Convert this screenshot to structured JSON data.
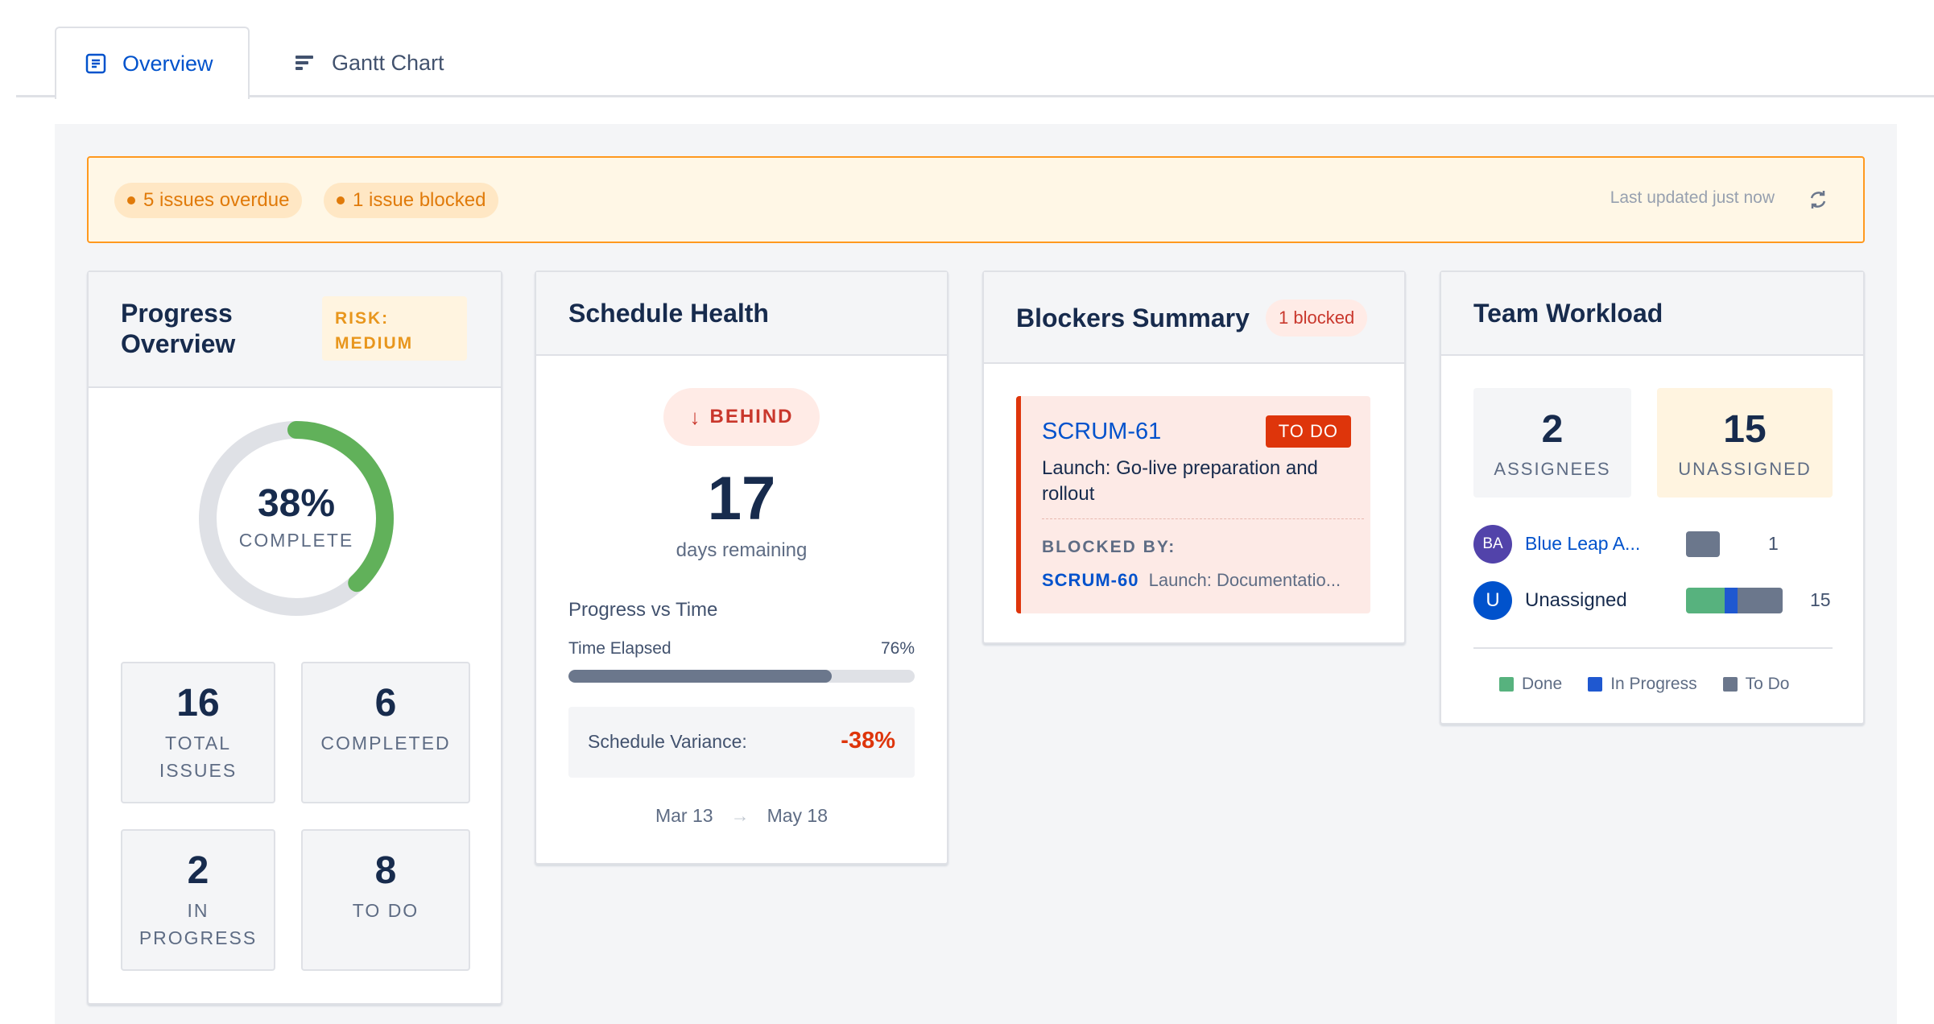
{
  "tabs": [
    {
      "label": "Overview",
      "icon": "document-icon"
    },
    {
      "label": "Gantt Chart",
      "icon": "gantt-icon"
    }
  ],
  "banner": {
    "overdue": "5 issues overdue",
    "blocked": "1 issue blocked",
    "last_updated": "Last updated just now"
  },
  "progress": {
    "title_line1": "Progress",
    "title_line2": "Overview",
    "risk_line1": "RISK:",
    "risk_line2": "MEDIUM",
    "percent": "38%",
    "percent_value": 0.38,
    "percent_label": "COMPLETE",
    "stats": [
      {
        "value": "16",
        "label_line1": "TOTAL",
        "label_line2": "ISSUES"
      },
      {
        "value": "6",
        "label_line1": "COMPLETED",
        "label_line2": ""
      },
      {
        "value": "2",
        "label_line1": "IN",
        "label_line2": "PROGRESS"
      },
      {
        "value": "8",
        "label_line1": "TO DO",
        "label_line2": ""
      }
    ],
    "colors": {
      "ring": "#61b15a",
      "track": "#dfe1e6"
    }
  },
  "schedule": {
    "title": "Schedule Health",
    "status": "BEHIND",
    "days": "17",
    "days_label": "days remaining",
    "section_label": "Progress vs Time",
    "elapsed_label": "Time Elapsed",
    "elapsed_pct": "76%",
    "elapsed_value": 0.76,
    "variance_label": "Schedule Variance:",
    "variance_value": "-38%",
    "start": "Mar 13",
    "end": "May 18"
  },
  "blockers": {
    "title": "Blockers Summary",
    "badge": "1 blocked",
    "issue_key": "SCRUM-61",
    "issue_status": "TO DO",
    "issue_title_line1": "Launch: Go-live preparation and",
    "issue_title_line2": "rollout",
    "blocked_by_label": "BLOCKED BY:",
    "blocker_key": "SCRUM-60",
    "blocker_title": "Launch: Documentatio..."
  },
  "workload": {
    "title": "Team Workload",
    "assignees": "2",
    "assignees_label": "ASSIGNEES",
    "unassigned": "15",
    "unassigned_label": "UNASSIGNED",
    "rows": [
      {
        "initials": "BA",
        "name": "Blue Leap A...",
        "count": "1",
        "done": 0,
        "in_progress": 0,
        "todo": 1,
        "avatar_color": "#5243aa"
      },
      {
        "initials": "U",
        "name": "Unassigned",
        "count": "15",
        "done": 6,
        "in_progress": 2,
        "todo": 7,
        "avatar_color": "#0052cc"
      }
    ],
    "legend": [
      {
        "label": "Done",
        "color": "#57b27e"
      },
      {
        "label": "In Progress",
        "color": "#1f58d0"
      },
      {
        "label": "To Do",
        "color": "#6b778c"
      }
    ]
  }
}
